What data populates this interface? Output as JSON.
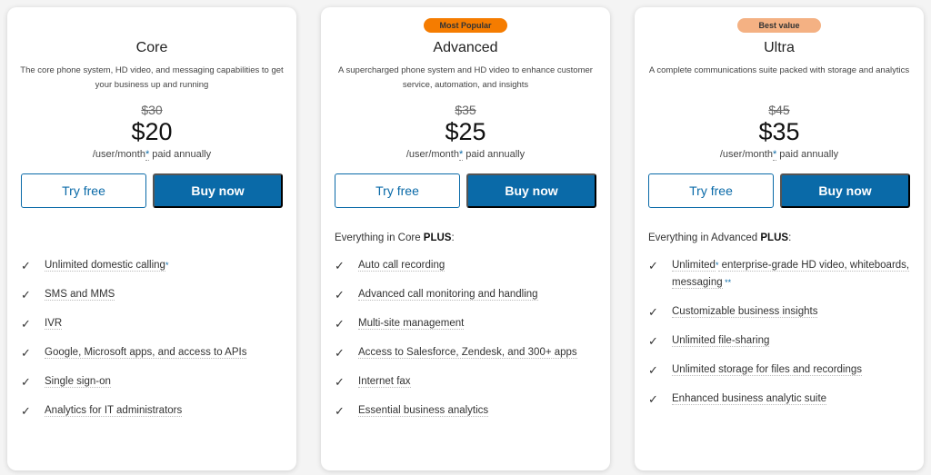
{
  "colors": {
    "accent": "#0a6aa8",
    "most_popular": "#f57c00",
    "best_value": "#f4b183"
  },
  "plans": [
    {
      "name": "Core",
      "badge": "",
      "description": "The core phone system, HD video, and messaging capabilities to get your business up and running",
      "old_price": "$30",
      "price": "$20",
      "per": "/user/month",
      "per_star": "*",
      "per_suffix": " paid annually",
      "try_label": "Try free",
      "buy_label": "Buy now",
      "lead": "",
      "lead_bold": "",
      "features": [
        [
          {
            "t": "Unlimited domestic calling"
          },
          {
            "s": "*"
          }
        ],
        [
          {
            "t": "SMS and MMS"
          }
        ],
        [
          {
            "t": "IVR"
          }
        ],
        [
          {
            "t": "Google, Microsoft apps, and access to APIs"
          }
        ],
        [
          {
            "t": "Single sign-on"
          }
        ],
        [
          {
            "t": "Analytics for IT administrators"
          }
        ]
      ]
    },
    {
      "name": "Advanced",
      "badge": "Most Popular",
      "description": "A supercharged phone system and HD video to enhance customer service, automation, and insights",
      "old_price": "$35",
      "price": "$25",
      "per": "/user/month",
      "per_star": "*",
      "per_suffix": " paid annually",
      "try_label": "Try free",
      "buy_label": "Buy now",
      "lead": "Everything in Core ",
      "lead_bold": "PLUS",
      "lead_end": ":",
      "features": [
        [
          {
            "t": "Auto call recording"
          }
        ],
        [
          {
            "t": "Advanced call monitoring and handling"
          }
        ],
        [
          {
            "t": "Multi-site management"
          }
        ],
        [
          {
            "t": "Access to Salesforce, Zendesk, and 300+ apps"
          }
        ],
        [
          {
            "t": "Internet fax"
          }
        ],
        [
          {
            "t": "Essential business analytics"
          }
        ]
      ]
    },
    {
      "name": "Ultra",
      "badge": "Best value",
      "description": "A complete communications suite packed  with storage and analytics",
      "old_price": "$45",
      "price": "$35",
      "per": "/user/month",
      "per_star": "*",
      "per_suffix": " paid annually",
      "try_label": "Try free",
      "buy_label": "Buy now",
      "lead": "Everything in Advanced ",
      "lead_bold": "PLUS",
      "lead_end": ":",
      "features": [
        [
          {
            "t": "Unlimited"
          },
          {
            "s": "*"
          },
          {
            "t": " enterprise-grade HD video, whiteboards, messaging"
          },
          {
            "s": " **"
          }
        ],
        [
          {
            "t": "Customizable business insights"
          }
        ],
        [
          {
            "t": "Unlimited file-sharing"
          }
        ],
        [
          {
            "t": "Unlimited storage for files and recordings"
          }
        ],
        [
          {
            "t": "Enhanced business analytic suite"
          }
        ]
      ]
    }
  ]
}
